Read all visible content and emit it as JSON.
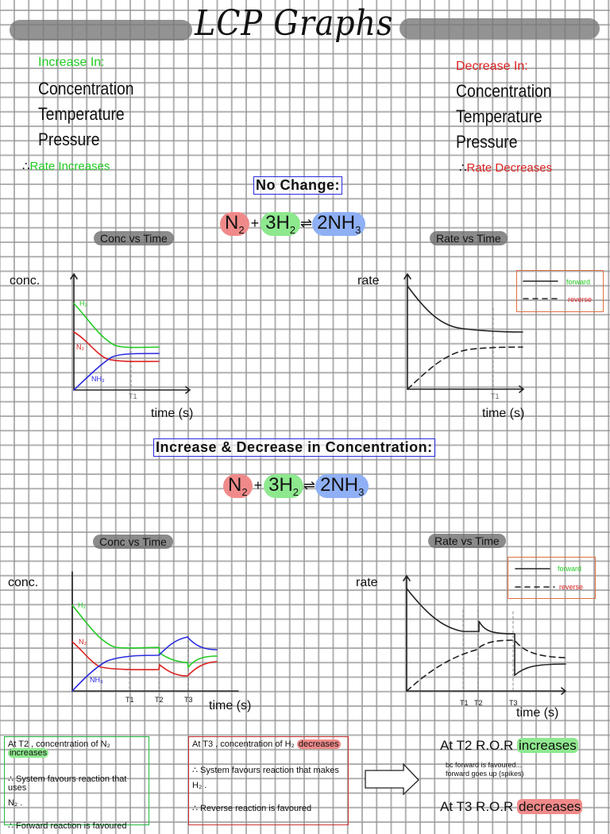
{
  "title": "LCP Graphs",
  "increase": {
    "heading": "Increase In:",
    "items": [
      "Concentration",
      "Temperature",
      "Pressure"
    ],
    "therefore": "∴",
    "result": "Rate Increases"
  },
  "decrease": {
    "heading": "Decrease In:",
    "items": [
      "Concentration",
      "Temperature",
      "Pressure"
    ],
    "therefore": "∴",
    "result": "Rate Decreases"
  },
  "colors": {
    "green": "#22cc22",
    "red": "#dd2222",
    "blue": "#2a2ae0",
    "n2_highlight": "#f08a8a",
    "h2_highlight": "#8ee88e",
    "nh3_highlight": "#8fb0f5"
  },
  "equation": {
    "n2": "N",
    "n2_sub": "2",
    "plus": "+",
    "h2": "3H",
    "h2_sub": "2",
    "arrow": "⇌",
    "nh3": "2NH",
    "nh3_sub": "3"
  },
  "section1": {
    "heading": "No Change:",
    "conc_pill": "Conc vs Time",
    "rate_pill": "Rate vs Time",
    "conc_graph": {
      "ylabel": "conc.",
      "xlabel": "time (s)",
      "series": [
        "H₂",
        "N₂",
        "NH₃"
      ],
      "ticks": [
        "T1"
      ]
    },
    "rate_graph": {
      "ylabel": "rate",
      "xlabel": "time (s)",
      "ticks": [
        "T1"
      ],
      "legend": {
        "forward": "forward",
        "reverse": "reverse"
      }
    }
  },
  "section2": {
    "heading": "Increase & Decrease in Concentration:",
    "conc_pill": "Conc vs Time",
    "rate_pill": "Rate vs Time",
    "conc_graph": {
      "ylabel": "conc.",
      "xlabel": "time (s)",
      "series": [
        "H₂",
        "N₂",
        "NH₃"
      ],
      "ticks": [
        "T1",
        "T2",
        "T3"
      ]
    },
    "rate_graph": {
      "ylabel": "rate",
      "xlabel": "time (s)",
      "ticks": [
        "T1",
        "T2",
        "T3"
      ],
      "legend": {
        "forward": "forward",
        "reverse": "reverse"
      }
    }
  },
  "notes": {
    "t2": {
      "line1_pre": "At T2 , concentration of N₂",
      "line1_hl": "increases",
      "line2": "∴ System favours reaction that uses",
      "line3": "N₂ .",
      "line4": "∴ Forward reaction is favoured"
    },
    "t3": {
      "line1_pre": "At T3 , concentration of H₂",
      "line1_hl": "decreases",
      "line2": "∴ System favours reaction that makes",
      "line3": "H₂ .",
      "line4": "∴ Reverse reaction is favoured"
    },
    "ror_t2": {
      "pre": "At T2 R.O.R",
      "hl": "increases",
      "note1": "bc forward is favoured...",
      "note2": "forward goes up (spikes)"
    },
    "ror_t3": {
      "pre": "At T3 R.O.R",
      "hl": "decreases"
    }
  }
}
